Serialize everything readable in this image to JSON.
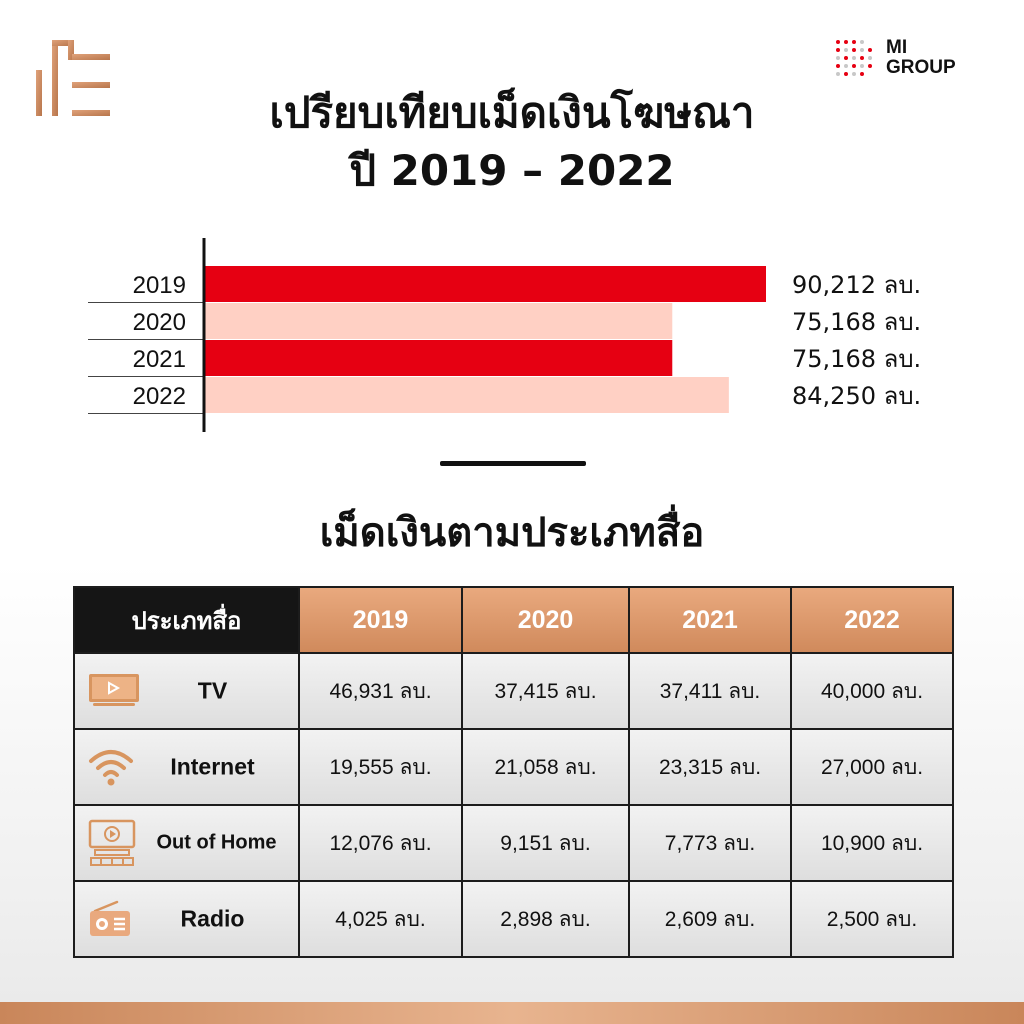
{
  "brand": {
    "left_logo_icon": "pillar-logo-icon",
    "right_logo_line1": "MI",
    "right_logo_line2": "GROUP"
  },
  "title_line1": "เปรียบเทียบเม็ดเงินโฆษณา",
  "title_line2": "ปี 2019 – 2022",
  "section_title": "เม็ดเงินตามประเภทสื่อ",
  "colors": {
    "bar_strong": "#e60012",
    "bar_light": "#ffd0c4",
    "accent_copper": "#d08a5c",
    "header_dark": "#151515"
  },
  "chart_data": {
    "type": "bar",
    "orientation": "horizontal",
    "categories": [
      "2019",
      "2020",
      "2021",
      "2022"
    ],
    "values": [
      90212,
      75168,
      75168,
      84250
    ],
    "value_labels": [
      "90,212 ลบ.",
      "75,168 ลบ.",
      "75,168 ลบ.",
      "84,250 ลบ."
    ],
    "bar_colors": [
      "#e60012",
      "#ffd0c4",
      "#e60012",
      "#ffd0c4"
    ],
    "title": "เปรียบเทียบเม็ดเงินโฆษณา ปี 2019 – 2022",
    "xlim": [
      0,
      90212
    ]
  },
  "table": {
    "header_type": "ประเภทสื่อ",
    "years": [
      "2019",
      "2020",
      "2021",
      "2022"
    ],
    "rows": [
      {
        "icon": "tv-icon",
        "name": "TV",
        "values": [
          "46,931 ลบ.",
          "37,415 ลบ.",
          "37,411 ลบ.",
          "40,000 ลบ."
        ]
      },
      {
        "icon": "wifi-icon",
        "name": "Internet",
        "values": [
          "19,555 ลบ.",
          "21,058 ลบ.",
          "23,315 ลบ.",
          "27,000 ลบ."
        ]
      },
      {
        "icon": "billboard-icon",
        "name": "Out of Home",
        "values": [
          "12,076 ลบ.",
          "9,151 ลบ.",
          "7,773  ลบ.",
          "10,900 ลบ."
        ]
      },
      {
        "icon": "radio-icon",
        "name": "Radio",
        "values": [
          "4,025 ลบ.",
          "2,898 ลบ.",
          "2,609 ลบ.",
          "2,500 ลบ."
        ]
      }
    ]
  }
}
